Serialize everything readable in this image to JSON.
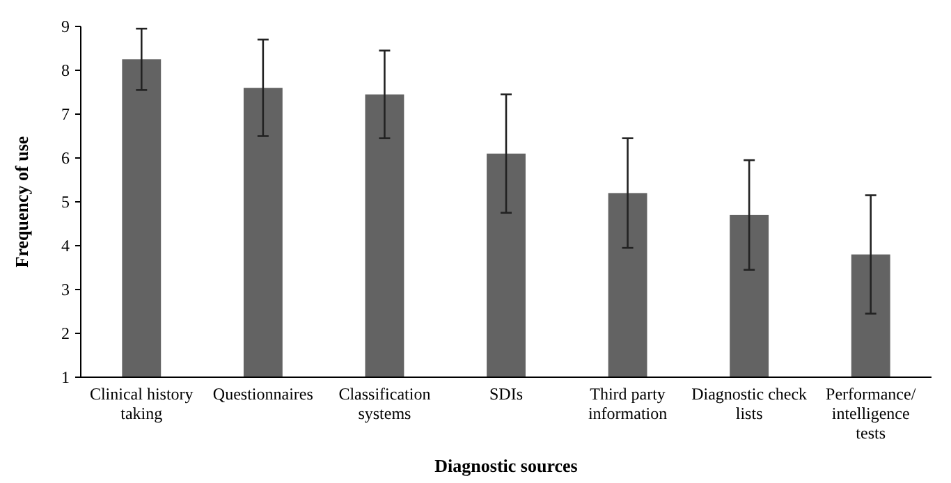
{
  "chart_data": {
    "type": "bar",
    "xlabel": "Diagnostic sources",
    "ylabel": "Frequency of use",
    "categories": [
      "Clinical history taking",
      "Questionnaires",
      "Classification systems",
      "SDIs",
      "Third party information",
      "Diagnostic check lists",
      "Performance/intelligence tests"
    ],
    "values": [
      8.25,
      7.6,
      7.45,
      6.1,
      5.2,
      4.7,
      3.8
    ],
    "errors": [
      0.7,
      1.1,
      1.0,
      1.35,
      1.25,
      1.25,
      1.35
    ],
    "color": "#636363",
    "ylim": [
      1,
      9
    ],
    "yticks": [
      1,
      2,
      3,
      4,
      5,
      6,
      7,
      8,
      9
    ]
  }
}
